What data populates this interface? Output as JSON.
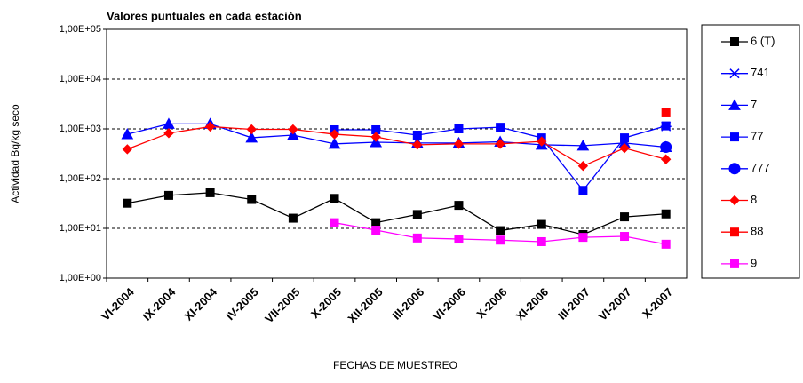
{
  "chart_data": {
    "type": "line",
    "title": "Valores puntuales en cada estación",
    "x_label": "FECHAS DE MUESTREO",
    "y_label": "Actividad Bq/kg seco",
    "log_scale": true,
    "grid": true,
    "legend": "right",
    "categories": [
      "VI-2004",
      "IX-2004",
      "XI-2004",
      "IV-2005",
      "VII-2005",
      "X-2005",
      "XII-2005",
      "III-2006",
      "VI-2006",
      "X-2006",
      "XI-2006",
      "III-2007",
      "VI-2007",
      "X-2007"
    ],
    "ylim": [
      1,
      100000
    ],
    "yticks": [
      {
        "value": 1,
        "label": "1,00E+00"
      },
      {
        "value": 10,
        "label": "1,00E+01"
      },
      {
        "value": 100,
        "label": "1,00E+02"
      },
      {
        "value": 1000,
        "label": "1,00E+03"
      },
      {
        "value": 10000,
        "label": "1,00E+04"
      },
      {
        "value": 100000,
        "label": "1,00E+05"
      }
    ],
    "series": [
      {
        "name": "6 (T)",
        "color": "#000000",
        "marker": "square",
        "values": [
          32,
          46,
          52,
          38,
          16,
          40,
          13,
          19,
          29,
          9,
          12,
          7.5,
          17,
          19.5
        ]
      },
      {
        "name": "741",
        "color": "#0000ff",
        "marker": "star",
        "values": [
          null,
          null,
          null,
          null,
          null,
          null,
          null,
          null,
          null,
          null,
          null,
          null,
          null,
          1120
        ]
      },
      {
        "name": "7",
        "color": "#0000ff",
        "marker": "triangle",
        "values": [
          780,
          1260,
          1260,
          665,
          750,
          500,
          540,
          520,
          520,
          550,
          480,
          460,
          520,
          430
        ]
      },
      {
        "name": "77",
        "color": "#0000ff",
        "marker": "square",
        "values": [
          null,
          null,
          null,
          null,
          null,
          960,
          960,
          750,
          1000,
          1080,
          660,
          58,
          660,
          1150
        ]
      },
      {
        "name": "777",
        "color": "#0000ff",
        "marker": "circle",
        "values": [
          null,
          null,
          null,
          null,
          null,
          null,
          null,
          null,
          null,
          null,
          null,
          null,
          null,
          430
        ]
      },
      {
        "name": "8",
        "color": "#ff0000",
        "marker": "diamond",
        "values": [
          390,
          820,
          1110,
          980,
          980,
          780,
          690,
          480,
          500,
          500,
          560,
          180,
          410,
          245
        ]
      },
      {
        "name": "88",
        "color": "#ff0000",
        "marker": "square",
        "values": [
          null,
          null,
          null,
          null,
          null,
          null,
          null,
          null,
          null,
          null,
          null,
          null,
          null,
          2100
        ]
      },
      {
        "name": "9",
        "color": "#ff00ff",
        "marker": "square",
        "values": [
          null,
          null,
          null,
          null,
          null,
          13,
          9.2,
          6.4,
          6.1,
          5.8,
          5.4,
          6.6,
          6.9,
          4.8
        ]
      }
    ]
  }
}
